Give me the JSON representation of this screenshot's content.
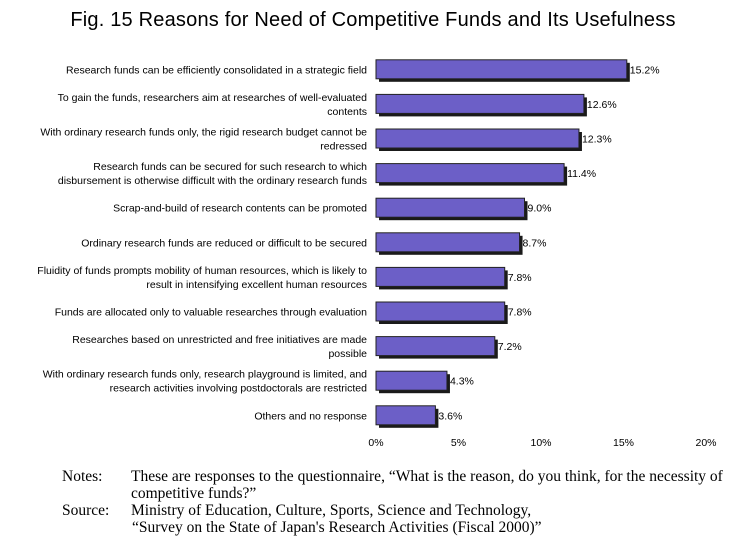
{
  "chart_data": {
    "type": "bar",
    "orientation": "horizontal",
    "title": "Fig. 15  Reasons for Need of Competitive Funds and Its Usefulness",
    "categories": [
      [
        "Research funds can be efficiently consolidated in a strategic field"
      ],
      [
        "To gain the funds, researchers aim at researches of well-evaluated",
        "contents"
      ],
      [
        "With ordinary research funds only, the rigid research budget cannot be",
        "redressed"
      ],
      [
        "Research funds can be secured for such research to which",
        "disbursement is otherwise difficult with the ordinary research funds"
      ],
      [
        "Scrap-and-build of research contents can be promoted"
      ],
      [
        "Ordinary research funds are reduced or difficult to be secured"
      ],
      [
        "Fluidity of funds prompts mobility of human resources, which is likely to",
        "result in intensifying excellent human resources"
      ],
      [
        "Funds are allocated only to valuable researches through evaluation"
      ],
      [
        "Researches based on unrestricted and free initiatives are made",
        "possible"
      ],
      [
        "With ordinary research funds only, research playground is limited, and",
        "research activities involving postdoctorals are restricted"
      ],
      [
        "Others and no response"
      ]
    ],
    "values": [
      15.2,
      12.6,
      12.3,
      11.4,
      9.0,
      8.7,
      7.8,
      7.8,
      7.2,
      4.3,
      3.6
    ],
    "value_labels": [
      "15.2%",
      "12.6%",
      "12.3%",
      "11.4%",
      "9.0%",
      "8.7%",
      "7.8%",
      "7.8%",
      "7.2%",
      "4.3%",
      "3.6%"
    ],
    "xlim": [
      0,
      20
    ],
    "xticks": [
      0,
      5,
      10,
      15,
      20
    ],
    "xtick_labels": [
      "0%",
      "5%",
      "10%",
      "15%",
      "20%"
    ],
    "xlabel": "",
    "ylabel": "",
    "grid": false,
    "legend": false,
    "bar_color": "#6c5fc7",
    "bar_shadow_color": "#1a1a1a"
  },
  "notes": {
    "label": "Notes:",
    "text": "These are responses to the questionnaire, “What is the reason, do you think, for the necessity of competitive funds?”"
  },
  "source": {
    "label": "Source:",
    "text_line1": "Ministry of Education, Culture, Sports, Science and Technology,",
    "text_line2": "“Survey on the State of Japan's Research Activities (Fiscal 2000)”"
  }
}
